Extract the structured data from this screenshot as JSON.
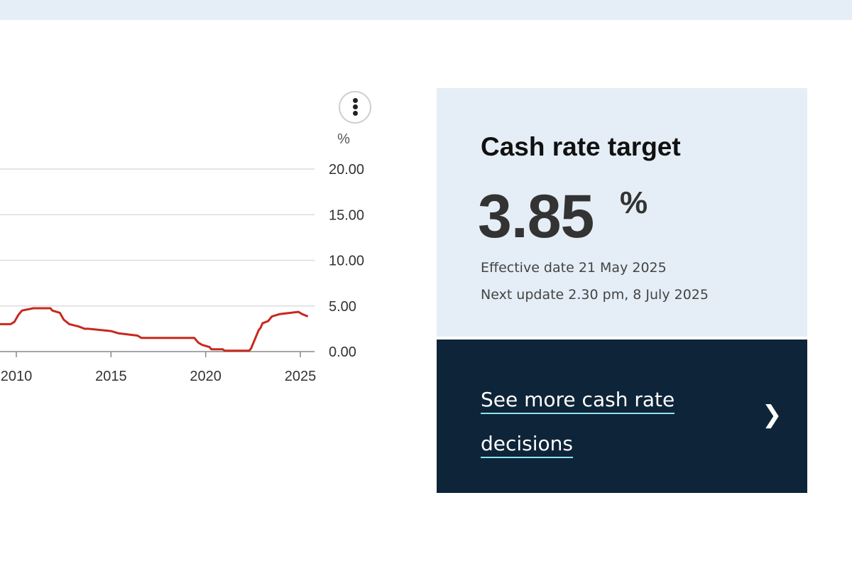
{
  "chart_menu": {
    "icon": "vertical-ellipsis-icon"
  },
  "chart_data": {
    "type": "line",
    "title": "",
    "xlabel": "",
    "ylabel": "%",
    "ylim": [
      0,
      20
    ],
    "xlim": [
      2008.5,
      2025.6
    ],
    "y_ticks": [
      "0.00",
      "5.00",
      "10.00",
      "15.00",
      "20.00"
    ],
    "y_tick_values": [
      0,
      5,
      10,
      15,
      20
    ],
    "x_ticks": [
      "2010",
      "2015",
      "2020",
      "2025"
    ],
    "x_tick_values": [
      2010,
      2015,
      2020,
      2025
    ],
    "grid": true,
    "series_color": "#c8281e",
    "series": [
      {
        "name": "",
        "x": [
          2008.5,
          2009.0,
          2009.1,
          2009.7,
          2009.9,
          2010.1,
          2010.3,
          2010.9,
          2011.8,
          2011.9,
          2012.3,
          2012.5,
          2012.8,
          2013.3,
          2013.6,
          2013.8,
          2015.0,
          2015.4,
          2016.4,
          2016.6,
          2019.4,
          2019.6,
          2019.8,
          2020.2,
          2020.3,
          2020.9,
          2021.0,
          2022.3,
          2022.4,
          2022.5,
          2022.6,
          2022.7,
          2022.8,
          2022.9,
          2023.0,
          2023.3,
          2023.5,
          2023.9,
          2024.9,
          2025.1,
          2025.4
        ],
        "y": [
          3.5,
          3.0,
          3.0,
          3.0,
          3.25,
          4.0,
          4.5,
          4.75,
          4.75,
          4.5,
          4.25,
          3.5,
          3.0,
          2.75,
          2.5,
          2.5,
          2.25,
          2.0,
          1.75,
          1.5,
          1.5,
          1.0,
          0.75,
          0.5,
          0.25,
          0.25,
          0.1,
          0.1,
          0.35,
          0.85,
          1.35,
          1.85,
          2.35,
          2.6,
          3.1,
          3.35,
          3.85,
          4.1,
          4.35,
          4.1,
          3.85
        ]
      }
    ]
  },
  "rate_card": {
    "title": "Cash rate target",
    "value": "3.85",
    "unit": "%",
    "effective": "Effective date 21 May 2025",
    "next_update": "Next update 2.30 pm, 8 July 2025"
  },
  "cta": {
    "label": "See more cash rate decisions",
    "line1": "See more cash rate",
    "line2": "decisions",
    "arrow": "❯"
  },
  "colors": {
    "band": "#e5eef6",
    "card": "#e5eef6",
    "cta": "#0e2438",
    "underline": "#8fe3f0"
  }
}
